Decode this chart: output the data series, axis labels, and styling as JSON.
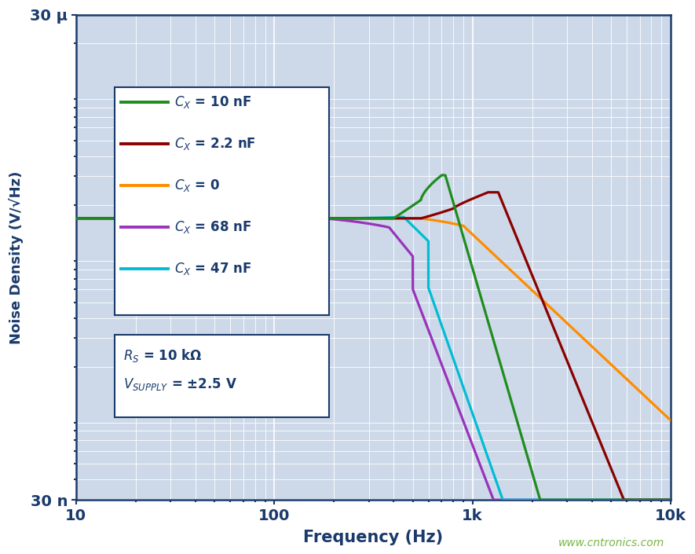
{
  "xlabel": "Frequency (Hz)",
  "ylabel": "Noise Density (V/√Hz)",
  "xlim": [
    10,
    10000
  ],
  "ylim": [
    3e-08,
    3e-05
  ],
  "background_color": "#cdd9e8",
  "grid_color": "#ffffff",
  "axis_color": "#1a3a6c",
  "label_color": "#1a3a6c",
  "line_width": 2.3,
  "base_noise": 1.65e-06,
  "legend_items": [
    {
      "label": "$C_X$ = 10 nF",
      "color": "#1f8c1f"
    },
    {
      "label": "$C_X$ = 2.2 nF",
      "color": "#8b0000"
    },
    {
      "label": "$C_X$ = 0",
      "color": "#ff8c00"
    },
    {
      "label": "$C_X$ = 68 nF",
      "color": "#9933bb"
    },
    {
      "label": "$C_X$ = 47 nF",
      "color": "#00bcd4"
    }
  ],
  "annotation_Rs": "$R_S$ = 10 kΩ",
  "annotation_Vsupply": "$V_{SUPPLY}$ = ±2.5 V",
  "watermark": "www.cntronics.com",
  "watermark_color": "#7ab648",
  "xtick_locs": [
    10,
    100,
    1000,
    10000
  ],
  "xtick_labels": [
    "10",
    "100",
    "1k",
    "10k"
  ],
  "ytick_locs": [
    3e-08,
    3e-05
  ],
  "ytick_labels": [
    "30 n",
    "30 μ"
  ]
}
